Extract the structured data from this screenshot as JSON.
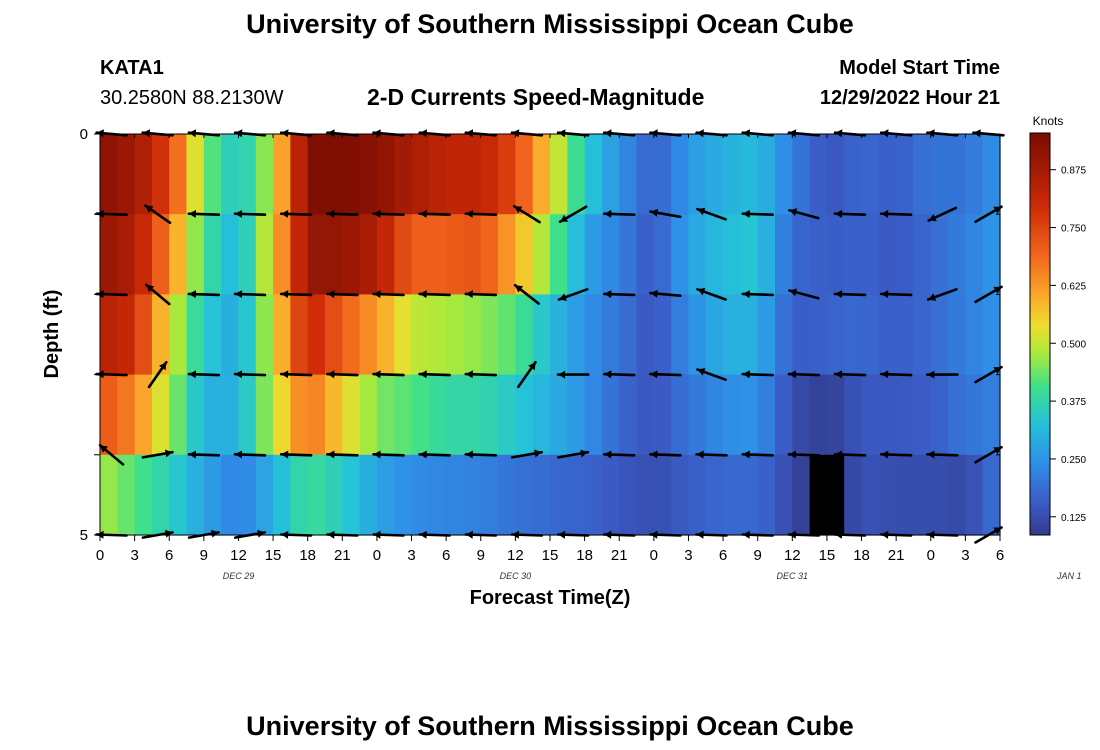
{
  "header": {
    "title": "University of Southern Mississippi Ocean Cube",
    "station": "KATA1",
    "coords": "30.2580N  88.2130W",
    "chart_title": "2-D Currents Speed-Magnitude",
    "model_start_label": "Model Start Time",
    "model_start_value": "12/29/2022 Hour 21"
  },
  "footer": {
    "title": "University of Southern Mississippi Ocean Cube"
  },
  "chart_data": {
    "type": "heatmap",
    "title": "2-D Currents Speed-Magnitude",
    "xlabel": "Forecast Time(Z)",
    "ylabel": "Depth (ft)",
    "x_tick_labels": [
      "0",
      "3",
      "6",
      "9",
      "12",
      "15",
      "18",
      "21",
      "0",
      "3",
      "6",
      "9",
      "12",
      "15",
      "18",
      "21",
      "0",
      "3",
      "6",
      "9",
      "12",
      "15",
      "18",
      "21",
      "0",
      "3",
      "6"
    ],
    "date_labels": [
      {
        "label": "DEC 29",
        "hour": 12
      },
      {
        "label": "DEC 30",
        "hour": 36
      },
      {
        "label": "DEC 31",
        "hour": 60
      },
      {
        "label": "JAN 1",
        "hour": 84
      }
    ],
    "x_range_hours": [
      0,
      78
    ],
    "y_range_ft": [
      0,
      5
    ],
    "y_tick_labels": [
      "0",
      "5"
    ],
    "colorbar": {
      "label": "Knots",
      "ticks": [
        "0.125",
        "0.250",
        "0.375",
        "0.500",
        "0.625",
        "0.750",
        "0.875"
      ],
      "range": [
        0.09,
        0.95
      ]
    },
    "depth_rows": [
      "0.5 ft",
      "1.5 ft",
      "2.5 ft",
      "3.5 ft",
      "4.5 ft"
    ],
    "hours": [
      0,
      3,
      6,
      9,
      12,
      15,
      18,
      21,
      24,
      27,
      30,
      33,
      36,
      39,
      42,
      45,
      48,
      51,
      54,
      57,
      60,
      63,
      66,
      69,
      72,
      75,
      78
    ],
    "speed_knots": [
      [
        0.92,
        0.88,
        0.75,
        0.45,
        0.33,
        0.5,
        0.94,
        0.94,
        0.92,
        0.86,
        0.82,
        0.82,
        0.74,
        0.55,
        0.35,
        0.25,
        0.16,
        0.26,
        0.3,
        0.32,
        0.22,
        0.14,
        0.18,
        0.16,
        0.2,
        0.2,
        0.25
      ],
      [
        0.9,
        0.85,
        0.65,
        0.4,
        0.3,
        0.55,
        0.9,
        0.9,
        0.85,
        0.7,
        0.7,
        0.72,
        0.6,
        0.45,
        0.28,
        0.22,
        0.15,
        0.28,
        0.32,
        0.34,
        0.18,
        0.16,
        0.17,
        0.15,
        0.18,
        0.22,
        0.26
      ],
      [
        0.84,
        0.8,
        0.52,
        0.35,
        0.28,
        0.52,
        0.82,
        0.7,
        0.62,
        0.5,
        0.48,
        0.46,
        0.42,
        0.32,
        0.25,
        0.2,
        0.14,
        0.24,
        0.3,
        0.3,
        0.16,
        0.17,
        0.18,
        0.16,
        0.18,
        0.22,
        0.25
      ],
      [
        0.72,
        0.65,
        0.48,
        0.3,
        0.3,
        0.5,
        0.68,
        0.55,
        0.45,
        0.42,
        0.38,
        0.38,
        0.34,
        0.3,
        0.25,
        0.18,
        0.14,
        0.2,
        0.24,
        0.25,
        0.13,
        0.1,
        0.15,
        0.15,
        0.16,
        0.2,
        0.22
      ],
      [
        0.48,
        0.42,
        0.36,
        0.28,
        0.22,
        0.3,
        0.4,
        0.35,
        0.28,
        0.24,
        0.23,
        0.22,
        0.2,
        0.18,
        0.17,
        0.15,
        0.13,
        0.16,
        0.18,
        0.18,
        0.12,
        0.06,
        0.14,
        0.13,
        0.13,
        0.12,
        0.2
      ]
    ],
    "vector_hours": [
      1,
      5,
      9,
      13,
      17,
      21,
      25,
      29,
      33,
      37,
      41,
      45,
      49,
      53,
      57,
      61,
      65,
      69,
      73,
      77
    ],
    "vector_depth_ft": [
      0,
      1,
      2,
      3,
      4,
      5
    ],
    "vector_direction_deg": [
      [
        275,
        275,
        275,
        275,
        275,
        275,
        275,
        275,
        275,
        275,
        275,
        275,
        275,
        275,
        275,
        275,
        275,
        275,
        275,
        275
      ],
      [
        272,
        305,
        272,
        272,
        272,
        272,
        272,
        272,
        272,
        302,
        240,
        272,
        280,
        290,
        272,
        285,
        272,
        272,
        245,
        60
      ],
      [
        272,
        310,
        272,
        272,
        272,
        272,
        272,
        272,
        272,
        308,
        250,
        272,
        275,
        290,
        272,
        285,
        272,
        272,
        250,
        60
      ],
      [
        272,
        35,
        272,
        272,
        272,
        272,
        272,
        272,
        272,
        35,
        270,
        272,
        272,
        290,
        272,
        272,
        272,
        272,
        270,
        60
      ],
      [
        310,
        80,
        272,
        272,
        272,
        272,
        272,
        272,
        272,
        80,
        80,
        272,
        272,
        272,
        272,
        272,
        272,
        272,
        272,
        60
      ],
      [
        272,
        80,
        80,
        80,
        272,
        272,
        272,
        272,
        272,
        272,
        272,
        272,
        272,
        272,
        272,
        272,
        272,
        272,
        272,
        60
      ]
    ]
  }
}
